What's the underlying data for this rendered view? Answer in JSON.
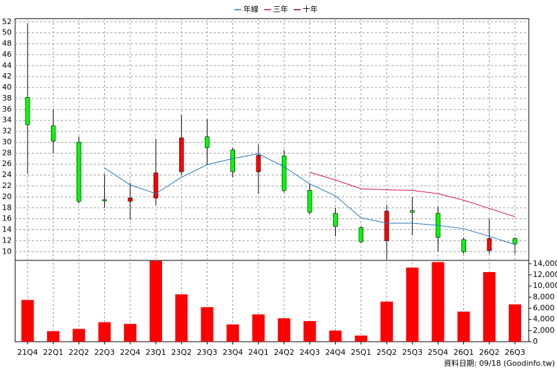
{
  "chart_data": {
    "type": "candlestick",
    "categories": [
      "21Q4",
      "22Q1",
      "22Q2",
      "22Q3",
      "22Q4",
      "23Q1",
      "23Q2",
      "23Q3",
      "23Q4",
      "24Q1",
      "24Q2",
      "24Q3",
      "24Q4",
      "25Q1",
      "25Q2",
      "25Q3",
      "25Q4",
      "26Q1",
      "26Q2",
      "26Q3"
    ],
    "open": [
      38.2,
      33.0,
      30.0,
      19.5,
      19.2,
      19.8,
      24.6,
      31.0,
      28.6,
      24.6,
      27.5,
      21.2,
      17.0,
      14.4,
      12.0,
      17.5,
      17.0,
      12.2,
      10.2,
      12.4
    ],
    "high": [
      51.7,
      36.0,
      31.0,
      24.2,
      22.6,
      30.6,
      35.0,
      34.2,
      29.0,
      29.6,
      28.6,
      22.4,
      18.0,
      14.6,
      18.6,
      20.0,
      18.2,
      12.6,
      16.0,
      12.6
    ],
    "low": [
      24.2,
      28.0,
      18.8,
      18.0,
      15.8,
      18.5,
      24.0,
      25.8,
      23.6,
      20.6,
      20.8,
      16.8,
      12.8,
      11.6,
      8.5,
      13.0,
      10.0,
      9.6,
      9.6,
      9.6
    ],
    "close": [
      33.2,
      30.2,
      19.2,
      19.3,
      19.8,
      24.4,
      30.8,
      29.0,
      24.6,
      27.6,
      21.2,
      17.2,
      14.6,
      11.8,
      17.4,
      17.2,
      12.6,
      10.0,
      12.4,
      11.4
    ],
    "up_color": "#ff0000",
    "down_color": "#00ff00",
    "series": [
      {
        "name": "年線",
        "color": "#1e73be",
        "values": [
          null,
          null,
          null,
          25.3,
          22.2,
          20.6,
          23.6,
          25.9,
          27.0,
          27.9,
          25.5,
          22.4,
          20.2,
          16.2,
          15.2,
          15.2,
          14.8,
          14.2,
          12.8,
          11.3
        ]
      },
      {
        "name": "三年",
        "color": "#d0104c",
        "values": [
          null,
          null,
          null,
          null,
          null,
          null,
          null,
          null,
          null,
          null,
          null,
          24.5,
          23.1,
          21.5,
          21.3,
          21.2,
          20.6,
          19.4,
          17.9,
          16.4
        ]
      },
      {
        "name": "十年",
        "color": "#800040",
        "values": [
          null,
          null,
          null,
          null,
          null,
          null,
          null,
          null,
          null,
          null,
          null,
          null,
          null,
          null,
          null,
          null,
          null,
          null,
          null,
          null
        ]
      }
    ],
    "ylim": [
      8.4,
      52.6
    ],
    "yticks": [
      10,
      12,
      14,
      16,
      18,
      20,
      22,
      24,
      26,
      28,
      30,
      32,
      34,
      36,
      38,
      40,
      42,
      44,
      46,
      48,
      50,
      52
    ],
    "grid": true,
    "volume": {
      "color": "#ff0000",
      "values": [
        7500,
        1900,
        2300,
        3500,
        3200,
        14500,
        8500,
        6200,
        3100,
        4900,
        4200,
        3700,
        2000,
        1100,
        7200,
        13300,
        14300,
        5400,
        12500,
        6700
      ],
      "y2lim": [
        0,
        14600
      ],
      "y2ticks": [
        0,
        {
          "value": 2000,
          "label": "2,000"
        },
        {
          "value": 4000,
          "label": "4,000"
        },
        {
          "value": 6000,
          "label": "6,000"
        },
        {
          "value": 8000,
          "label": "8,000"
        },
        {
          "value": 10000,
          "label": "10,000"
        },
        {
          "value": 12000,
          "label": "12,000"
        },
        {
          "value": 14000,
          "label": "14,000"
        }
      ]
    },
    "footer": "資料日期: 09/18 (Goodinfo.tw)"
  }
}
